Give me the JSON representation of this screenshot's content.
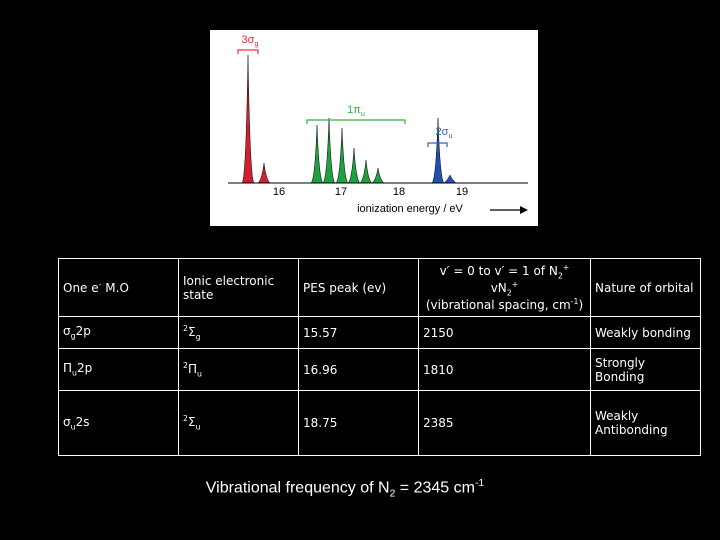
{
  "figure": {
    "labels": [
      [
        {
          "text": "3σ"
        },
        {
          "text": "g",
          "sub": true
        }
      ],
      [
        {
          "text": "1π"
        },
        {
          "text": "u",
          "sub": true
        }
      ],
      [
        {
          "text": "2σ"
        },
        {
          "text": "u",
          "sub": true
        }
      ]
    ],
    "ticks": [
      16,
      17,
      18,
      19
    ],
    "axis_label": "ionization energy / eV"
  },
  "table": {
    "header": [
      [
        [
          {
            "text": "One e"
          },
          {
            "text": "-",
            "sup": true
          },
          {
            "text": " M.O"
          }
        ]
      ],
      [
        [
          {
            "text": "Ionic electronic state"
          }
        ]
      ],
      [
        [
          {
            "text": "PES peak (ev)"
          }
        ]
      ],
      [
        [
          {
            "text": "v′ = 0 to v′ = 1 of N"
          },
          {
            "text": "2",
            "sub": true
          },
          {
            "text": "+",
            "sup": true
          }
        ],
        [
          {
            "text": "vN"
          },
          {
            "text": "2",
            "sub": true
          },
          {
            "text": "+",
            "sup": true
          }
        ],
        [
          {
            "text": "(vibrational spacing, cm"
          },
          {
            "text": "-1",
            "sup": true
          },
          {
            "text": ")"
          }
        ]
      ],
      [
        [
          {
            "text": "Nature of orbital"
          }
        ]
      ]
    ],
    "rows": [
      [
        [
          [
            {
              "text": "σ"
            },
            {
              "text": "g",
              "sub": true
            },
            {
              "text": "2p"
            }
          ]
        ],
        [
          [
            {
              "text": "2",
              "sup": true
            },
            {
              "text": "Σ"
            },
            {
              "text": "g",
              "sub": true
            }
          ]
        ],
        [
          [
            {
              "text": 15.57
            }
          ]
        ],
        [
          [
            {
              "text": 2150
            }
          ]
        ],
        [
          [
            {
              "text": "Weakly bonding"
            }
          ]
        ]
      ],
      [
        [
          [
            {
              "text": "Π"
            },
            {
              "text": "u",
              "sub": true
            },
            {
              "text": "2p"
            }
          ]
        ],
        [
          [
            {
              "text": "2",
              "sup": true
            },
            {
              "text": "Π"
            },
            {
              "text": "u",
              "sub": true
            }
          ]
        ],
        [
          [
            {
              "text": 16.96
            }
          ]
        ],
        [
          [
            {
              "text": 1810
            }
          ]
        ],
        [
          [
            {
              "text": "Strongly Bonding"
            }
          ]
        ]
      ],
      [
        [
          [
            {
              "text": "σ"
            },
            {
              "text": "u",
              "sub": true
            },
            {
              "text": "2s"
            }
          ]
        ],
        [
          [
            {
              "text": "2",
              "sup": true
            },
            {
              "text": "Σ"
            },
            {
              "text": "u",
              "sub": true
            }
          ]
        ],
        [
          [
            {
              "text": 18.75
            }
          ]
        ],
        [
          [
            {
              "text": 2385
            }
          ]
        ],
        [
          [
            {
              "text": "Weakly Antibonding"
            }
          ]
        ]
      ]
    ]
  },
  "caption": [
    {
      "text": "Vibrational frequency of N"
    },
    {
      "text": "2",
      "sub": true
    },
    {
      "text": " = 2345 cm"
    },
    {
      "text": "-1",
      "sup": true
    }
  ]
}
